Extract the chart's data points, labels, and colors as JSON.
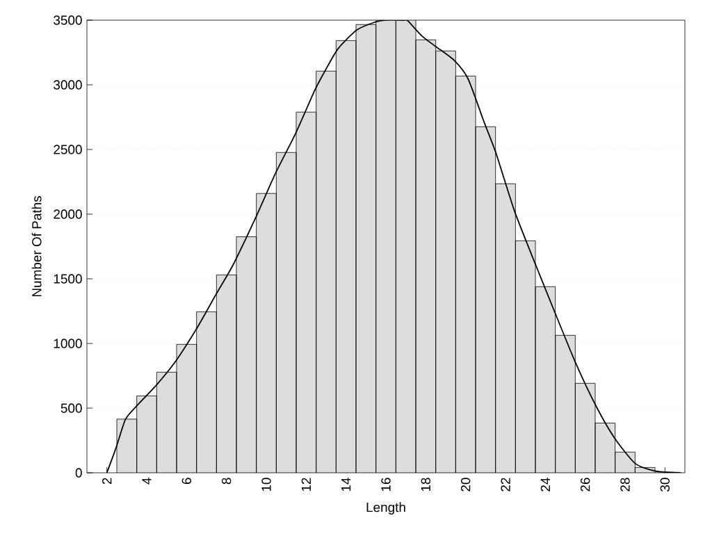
{
  "chart_data": {
    "type": "histogram",
    "xlabel": "Length",
    "ylabel": "Number Of Paths",
    "xlim": [
      1,
      31
    ],
    "ylim": [
      0,
      3500
    ],
    "xticks": [
      2,
      4,
      6,
      8,
      10,
      12,
      14,
      16,
      18,
      20,
      22,
      24,
      26,
      28,
      30
    ],
    "yticks": [
      0,
      500,
      1000,
      1500,
      2000,
      2500,
      3000,
      3500
    ],
    "grid": "y",
    "series": [
      {
        "color": "#dddddd",
        "bins": [
          2.5,
          3.5,
          4.5,
          5.5,
          6.5,
          7.5,
          8.5,
          9.5,
          10.5,
          11.5,
          12.5,
          13.5,
          14.5,
          15.5,
          16.5,
          17.5,
          18.5,
          19.5,
          20.5,
          21.5,
          22.5,
          23.5,
          24.5,
          25.5,
          26.5,
          27.5,
          28.5,
          29.5
        ],
        "values": [
          415,
          595,
          778,
          993,
          1245,
          1530,
          1825,
          2160,
          2477,
          2789,
          3106,
          3342,
          3466,
          3500,
          3500,
          3348,
          3262,
          3068,
          2676,
          2235,
          1794,
          1439,
          1063,
          692,
          385,
          160,
          41
        ]
      },
      {
        "type": "line",
        "color": "#000000",
        "x": [
          2.0,
          2.47,
          2.93,
          3.46,
          4.5,
          5.44,
          6.49,
          7.48,
          8.35,
          9.46,
          10.45,
          11.5,
          12.43,
          12.95,
          13.6,
          14.53,
          15.46,
          16.0,
          16.9,
          17.1,
          17.8,
          18.49,
          19.42,
          20.12,
          20.94,
          21.52,
          22.45,
          23.5,
          24.44,
          25.49,
          26.53,
          27.47,
          28.51,
          29.56,
          30.8
        ],
        "values": [
          0,
          197,
          412,
          511,
          681,
          860,
          1111,
          1380,
          1613,
          1971,
          2312,
          2634,
          2957,
          3109,
          3279,
          3423,
          3485,
          3500,
          3500,
          3495,
          3378,
          3297,
          3190,
          3047,
          2706,
          2473,
          2025,
          1613,
          1254,
          860,
          520,
          269,
          72,
          12,
          0
        ]
      }
    ]
  }
}
